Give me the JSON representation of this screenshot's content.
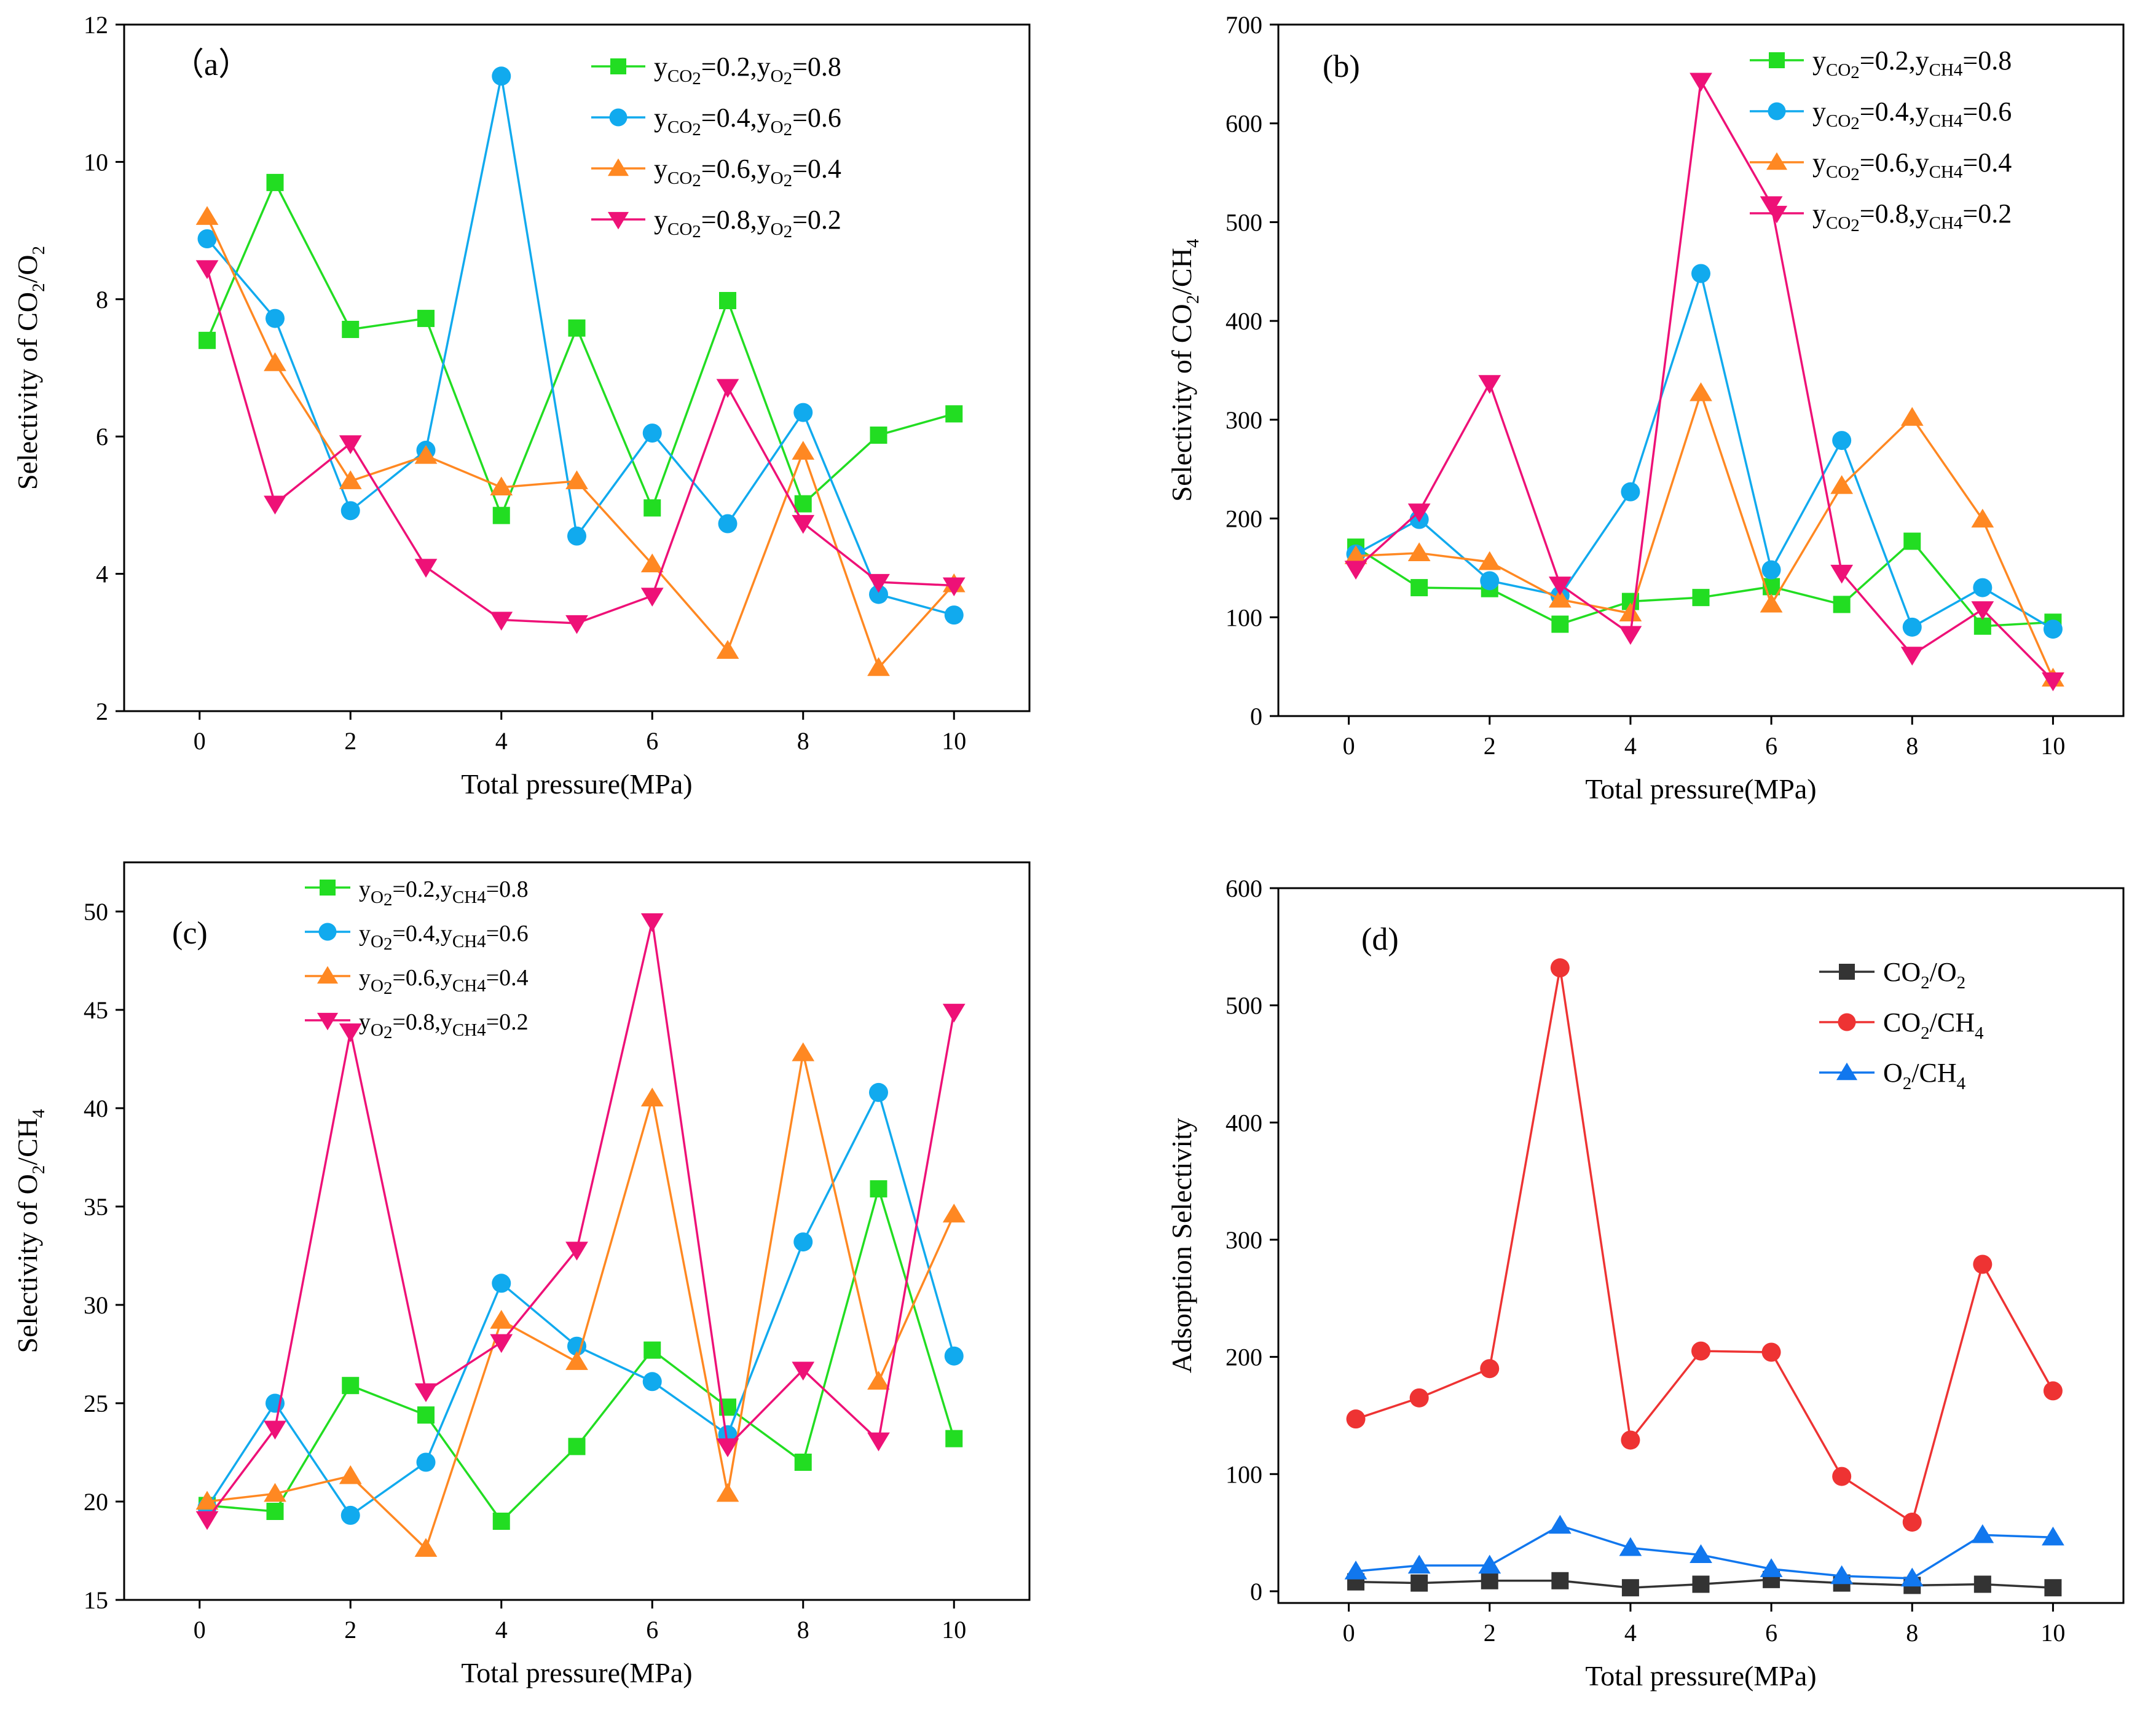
{
  "figure": {
    "colors": {
      "green": "#22dd22",
      "blue": "#11aaee",
      "orange": "#ff8822",
      "magenta": "#ee1177",
      "gray": "#333333",
      "red": "#ee3333",
      "dblue": "#1177ee"
    }
  },
  "chart_data": [
    {
      "type": "line",
      "panel_label": "（a）",
      "xlabel": "Total pressure(MPa)",
      "ylabel": "Selectivity of CO2/O2",
      "ylabel_parts": {
        "pre": "Selectivity of CO",
        "sub1": "2",
        "mid": "/O",
        "sub2": "2"
      },
      "xlim": [
        -1,
        11
      ],
      "ylim": [
        2,
        12
      ],
      "xticks": [
        0,
        2,
        4,
        6,
        8,
        10
      ],
      "yticks": [
        2,
        4,
        6,
        8,
        10,
        12
      ],
      "x": [
        0.1,
        1,
        2,
        3,
        4,
        5,
        6,
        7,
        8,
        9,
        10
      ],
      "legend_position": "top-right",
      "series": [
        {
          "name": "yCO2=0.2,yO2=0.8",
          "legend": {
            "a": "y",
            "as": "CO",
            "asub": "2",
            "b": "=0.2,y",
            "bs": "O",
            "bsub": "2",
            "c": "=0.8"
          },
          "color": "#22dd22",
          "marker": "square",
          "values": [
            7.4,
            9.7,
            7.56,
            7.72,
            4.85,
            7.58,
            4.96,
            7.98,
            5.02,
            6.02,
            6.33
          ]
        },
        {
          "name": "yCO2=0.4,yO2=0.6",
          "legend": {
            "a": "y",
            "as": "CO",
            "asub": "2",
            "b": "=0.4,y",
            "bs": "O",
            "bsub": "2",
            "c": "=0.6"
          },
          "color": "#11aaee",
          "marker": "circle",
          "values": [
            8.88,
            7.72,
            4.92,
            5.8,
            11.25,
            4.55,
            6.05,
            4.73,
            6.35,
            3.7,
            3.4
          ]
        },
        {
          "name": "yCO2=0.6,yO2=0.4",
          "legend": {
            "a": "y",
            "as": "CO",
            "asub": "2",
            "b": "=0.6,y",
            "bs": "O",
            "bsub": "2",
            "c": "=0.4"
          },
          "color": "#ff8822",
          "marker": "triangle-up",
          "values": [
            9.2,
            7.07,
            5.35,
            5.72,
            5.26,
            5.35,
            4.14,
            2.88,
            5.78,
            2.63,
            3.85
          ]
        },
        {
          "name": "yCO2=0.8,yO2=0.2",
          "legend": {
            "a": "y",
            "as": "CO",
            "asub": "2",
            "b": "=0.8,y",
            "bs": "O",
            "bsub": "2",
            "c": "=0.2"
          },
          "color": "#ee1177",
          "marker": "triangle-down",
          "values": [
            8.45,
            5.02,
            5.9,
            4.1,
            3.33,
            3.28,
            3.68,
            6.72,
            4.74,
            3.88,
            3.83
          ]
        }
      ]
    },
    {
      "type": "line",
      "panel_label": "(b)",
      "xlabel": "Total pressure(MPa)",
      "ylabel": "Selectivity of CO2/CH4",
      "ylabel_parts": {
        "pre": "Selectivity of CO",
        "sub1": "2",
        "mid": "/CH",
        "sub2": "4"
      },
      "xlim": [
        -1,
        11
      ],
      "ylim": [
        0,
        700
      ],
      "xticks": [
        0,
        2,
        4,
        6,
        8,
        10
      ],
      "yticks": [
        0,
        100,
        200,
        300,
        400,
        500,
        600,
        700
      ],
      "x": [
        0.1,
        1,
        2,
        3,
        4,
        5,
        6,
        7,
        8,
        9,
        10
      ],
      "legend_position": "top-right",
      "series": [
        {
          "name": "yCO2=0.2,yCH4=0.8",
          "legend": {
            "a": "y",
            "as": "CO",
            "asub": "2",
            "b": "=0.2,y",
            "bs": "CH4",
            "bsub": "",
            "c": "=0.8"
          },
          "color": "#22dd22",
          "marker": "square",
          "values": [
            171,
            130,
            129,
            93,
            116,
            120,
            131,
            113,
            177,
            91,
            95
          ]
        },
        {
          "name": "yCO2=0.4,yCH4=0.6",
          "legend": {
            "a": "y",
            "as": "CO",
            "asub": "2",
            "b": "=0.4,y",
            "bs": "CH4",
            "bsub": "",
            "c": "=0.6"
          },
          "color": "#11aaee",
          "marker": "circle",
          "values": [
            164,
            199,
            137,
            122,
            227,
            448,
            148,
            279,
            90,
            130,
            88
          ]
        },
        {
          "name": "yCO2=0.6,yCH4=0.4",
          "legend": {
            "a": "y",
            "as": "CO",
            "asub": "2",
            "b": "=0.6,y",
            "bs": "CH4",
            "bsub": "",
            "c": "=0.4"
          },
          "color": "#ff8822",
          "marker": "triangle-up",
          "values": [
            162,
            165,
            156,
            118,
            104,
            327,
            113,
            233,
            302,
            199,
            38
          ]
        },
        {
          "name": "yCO2=0.8,yCH4=0.2",
          "legend": {
            "a": "y",
            "as": "CO",
            "asub": "2",
            "b": "=0.8,y",
            "bs": "CH4",
            "bsub": "",
            "c": "=0.2"
          },
          "color": "#ee1177",
          "marker": "triangle-down",
          "values": [
            149,
            207,
            337,
            133,
            83,
            643,
            518,
            145,
            62,
            108,
            36
          ]
        }
      ]
    },
    {
      "type": "line",
      "panel_label": "(c)",
      "xlabel": "Total pressure(MPa)",
      "ylabel": "Selectivity of O2/CH4",
      "ylabel_parts": {
        "pre": "Selectivity of O",
        "sub1": "2",
        "mid": "/CH",
        "sub2": "4"
      },
      "xlim": [
        -1,
        11
      ],
      "ylim": [
        15,
        52.5
      ],
      "xticks": [
        0,
        2,
        4,
        6,
        8,
        10
      ],
      "yticks": [
        15,
        20,
        25,
        30,
        35,
        40,
        45,
        50
      ],
      "x": [
        0.1,
        1,
        2,
        3,
        4,
        5,
        6,
        7,
        8,
        9,
        10
      ],
      "legend_position": "top",
      "series": [
        {
          "name": "yO2=0.2,yCH4=0.8",
          "legend": {
            "a": "y",
            "as": "O",
            "asub": "2",
            "b": "=0.2,y",
            "bs": "CH4",
            "bsub": "",
            "c": "=0.8"
          },
          "color": "#22dd22",
          "marker": "square",
          "values": [
            19.8,
            19.5,
            25.9,
            24.4,
            19.0,
            22.8,
            27.7,
            24.8,
            22.0,
            35.9,
            23.2
          ]
        },
        {
          "name": "yO2=0.4,yCH4=0.6",
          "legend": {
            "a": "y",
            "as": "O",
            "asub": "2",
            "b": "=0.4,y",
            "bs": "CH4",
            "bsub": "",
            "c": "=0.6"
          },
          "color": "#11aaee",
          "marker": "circle",
          "values": [
            19.7,
            25.0,
            19.3,
            22.0,
            31.1,
            27.9,
            26.1,
            23.4,
            33.2,
            40.8,
            27.4
          ]
        },
        {
          "name": "yO2=0.6,yCH4=0.4",
          "legend": {
            "a": "y",
            "as": "O",
            "asub": "2",
            "b": "=0.6,y",
            "bs": "CH4",
            "bsub": "",
            "c": "=0.4"
          },
          "color": "#ff8822",
          "marker": "triangle-up",
          "values": [
            20.0,
            20.4,
            21.3,
            17.6,
            29.2,
            27.1,
            40.5,
            20.4,
            42.8,
            26.1,
            34.6
          ]
        },
        {
          "name": "yO2=0.8,yCH4=0.2",
          "legend": {
            "a": "y",
            "as": "O",
            "asub": "2",
            "b": "=0.8,y",
            "bs": "CH4",
            "bsub": "",
            "c": "=0.2"
          },
          "color": "#ee1177",
          "marker": "triangle-down",
          "values": [
            19.1,
            23.7,
            43.9,
            25.6,
            28.1,
            32.8,
            49.5,
            22.8,
            26.7,
            23.1,
            44.9
          ]
        }
      ]
    },
    {
      "type": "line",
      "panel_label": "(d)",
      "xlabel": "Total pressure(MPa)",
      "ylabel": "Adsorption Selectivity",
      "xlim": [
        -1,
        11
      ],
      "ylim": [
        -10,
        600
      ],
      "xticks": [
        0,
        2,
        4,
        6,
        8,
        10
      ],
      "yticks": [
        0,
        100,
        200,
        300,
        400,
        500,
        600
      ],
      "x": [
        0.1,
        1,
        2,
        3,
        4,
        5,
        6,
        7,
        8,
        9,
        10
      ],
      "legend_position": "top-right",
      "series": [
        {
          "name": "CO2/O2",
          "legend": {
            "a": "CO",
            "asub": "2",
            "b": "/O",
            "bsub": "2"
          },
          "color": "#333333",
          "marker": "square",
          "values": [
            8,
            7,
            9,
            9,
            3,
            6,
            10,
            7,
            5,
            6,
            3
          ]
        },
        {
          "name": "CO2/CH4",
          "legend": {
            "a": "CO",
            "asub": "2",
            "b": "/CH",
            "bsub": "4"
          },
          "color": "#ee3333",
          "marker": "circle",
          "values": [
            147,
            165,
            190,
            532,
            129,
            205,
            204,
            98,
            59,
            279,
            171
          ]
        },
        {
          "name": "O2/CH4",
          "legend": {
            "a": "O",
            "asub": "2",
            "b": "/CH",
            "bsub": "4"
          },
          "color": "#1177ee",
          "marker": "triangle-up",
          "values": [
            17,
            22,
            22,
            56,
            37,
            31,
            19,
            13,
            11,
            48,
            46
          ]
        }
      ]
    }
  ]
}
